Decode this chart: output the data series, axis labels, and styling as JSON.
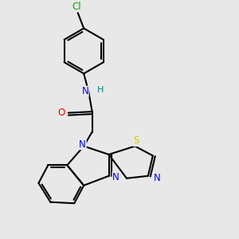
{
  "bg_color": "#e8e8e8",
  "line_color": "#000000",
  "bond_width": 1.5,
  "atom_colors": {
    "N": "#0000ff",
    "O": "#ff0000",
    "S": "#cccc00",
    "Cl": "#00aa00",
    "H": "#008080",
    "C": "#000000"
  },
  "font_size": 8.5
}
